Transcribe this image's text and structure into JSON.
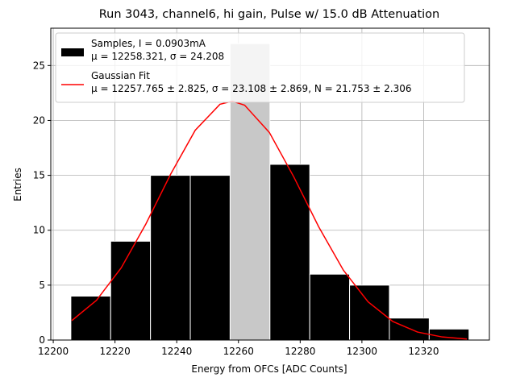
{
  "chart_data": {
    "type": "histogram",
    "title": "Run 3043, channel6, hi gain, Pulse w/ 15.0 dB Attenuation",
    "x_label": "Energy from OFCs [ADC Counts]",
    "y_label": "Entries",
    "bins": [
      12205.7,
      12218.6,
      12231.5,
      12244.4,
      12257.3,
      12270.2,
      12283.1,
      12296.0,
      12308.9,
      12321.8,
      12334.7
    ],
    "series": [
      {
        "name": "Samples, I = 0.0903mA",
        "stats": "μ = 12258.321, σ = 24.208",
        "color": "#000000",
        "colors": [
          "#000000",
          "#000000",
          "#000000",
          "#000000",
          "#c8c8c8",
          "#000000",
          "#000000",
          "#000000",
          "#000000",
          "#000000"
        ],
        "values": [
          4,
          9,
          15,
          15,
          27,
          16,
          6,
          5,
          2,
          1
        ]
      },
      {
        "name": "Gaussian Fit",
        "stats": "μ = 12257.765 ± 2.825, σ = 23.108 ± 2.869, N = 21.753 ± 2.306",
        "color": "#ff0000",
        "x": [
          12206,
          12214,
          12222,
          12230,
          12238,
          12246,
          12254,
          12258,
          12262,
          12270,
          12278,
          12286,
          12294,
          12302,
          12310,
          12318,
          12326,
          12334
        ],
        "values": [
          1.77,
          3.62,
          6.57,
          10.57,
          15.09,
          19.11,
          21.47,
          21.75,
          21.39,
          18.91,
          14.82,
          10.31,
          6.36,
          3.48,
          1.69,
          0.73,
          0.28,
          0.09
        ]
      }
    ],
    "xlim": [
      12199.2,
      12341.3
    ],
    "ylim": [
      0,
      28.4
    ],
    "xticks": [
      12200,
      12220,
      12240,
      12260,
      12280,
      12300,
      12320
    ],
    "yticks": [
      0,
      5,
      10,
      15,
      20,
      25
    ],
    "grid": true,
    "legend": "upper left"
  }
}
